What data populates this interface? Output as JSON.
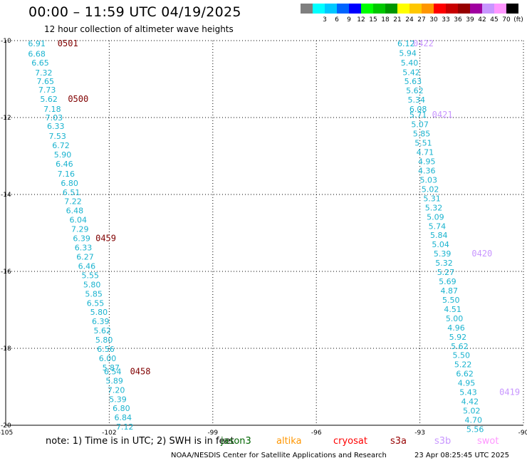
{
  "title": "00:00 – 11:59 UTC 04/19/2025",
  "subtitle": "12 hour collection of altimeter wave heights",
  "scale": {
    "unit": "(ft)",
    "items": [
      {
        "label": "",
        "color": "#7f7f7f"
      },
      {
        "label": "3",
        "color": "#00ffff"
      },
      {
        "label": "6",
        "color": "#00c8ff"
      },
      {
        "label": "9",
        "color": "#0064ff"
      },
      {
        "label": "12",
        "color": "#0000ff"
      },
      {
        "label": "15",
        "color": "#00ff00"
      },
      {
        "label": "18",
        "color": "#00c800"
      },
      {
        "label": "21",
        "color": "#009600"
      },
      {
        "label": "24",
        "color": "#ffff00"
      },
      {
        "label": "27",
        "color": "#ffc800"
      },
      {
        "label": "30",
        "color": "#ff9600"
      },
      {
        "label": "33",
        "color": "#ff0000"
      },
      {
        "label": "36",
        "color": "#c80000"
      },
      {
        "label": "39",
        "color": "#960000"
      },
      {
        "label": "42",
        "color": "#a000a0"
      },
      {
        "label": "45",
        "color": "#c896ff"
      },
      {
        "label": "70",
        "color": "#ff96ff"
      },
      {
        "label": "",
        "color": "#000000"
      }
    ]
  },
  "map": {
    "lon_range": [
      -105,
      -90
    ],
    "lat_range": [
      -20,
      -10
    ],
    "lon_ticks": [
      {
        "v": -105,
        "label": "-105"
      },
      {
        "v": -102,
        "label": "-102"
      },
      {
        "v": -99,
        "label": "-99"
      },
      {
        "v": -96,
        "label": "-96"
      },
      {
        "v": -93,
        "label": "-93"
      },
      {
        "v": -90,
        "label": "-90"
      }
    ],
    "lat_ticks": [
      {
        "v": -10,
        "label": "-10"
      },
      {
        "v": -12,
        "label": "-12"
      },
      {
        "v": -14,
        "label": "-14"
      },
      {
        "v": -16,
        "label": "-16"
      },
      {
        "v": -18,
        "label": "-18"
      },
      {
        "v": -20,
        "label": "-20"
      }
    ],
    "grid": true
  },
  "tracks": [
    {
      "color": "#1ab3cf",
      "label_color": "#800000",
      "points": [
        {
          "lon": -104.1,
          "lat": -10.07,
          "v": "6.91"
        },
        {
          "lon": -104.1,
          "lat": -10.34,
          "v": "6.68"
        },
        {
          "lon": -104.0,
          "lat": -10.57,
          "v": "6.65"
        },
        {
          "lon": -103.9,
          "lat": -10.83,
          "v": "7.32"
        },
        {
          "lon": -103.85,
          "lat": -11.06,
          "v": "7.65"
        },
        {
          "lon": -103.8,
          "lat": -11.28,
          "v": "7.73"
        },
        {
          "lon": -103.75,
          "lat": -11.52,
          "v": "5.62"
        },
        {
          "lon": -103.65,
          "lat": -11.78,
          "v": "7.18"
        },
        {
          "lon": -103.6,
          "lat": -12.0,
          "v": "7.03"
        },
        {
          "lon": -103.55,
          "lat": -12.22,
          "v": "6.33"
        },
        {
          "lon": -103.5,
          "lat": -12.48,
          "v": "7.53"
        },
        {
          "lon": -103.4,
          "lat": -12.72,
          "v": "6.72"
        },
        {
          "lon": -103.35,
          "lat": -12.96,
          "v": "5.90"
        },
        {
          "lon": -103.3,
          "lat": -13.2,
          "v": "6.46"
        },
        {
          "lon": -103.25,
          "lat": -13.46,
          "v": "7.16"
        },
        {
          "lon": -103.15,
          "lat": -13.7,
          "v": "6.80"
        },
        {
          "lon": -103.1,
          "lat": -13.94,
          "v": "6.51"
        },
        {
          "lon": -103.05,
          "lat": -14.18,
          "v": "7.22"
        },
        {
          "lon": -103.0,
          "lat": -14.42,
          "v": "6.48"
        },
        {
          "lon": -102.9,
          "lat": -14.66,
          "v": "6.04"
        },
        {
          "lon": -102.85,
          "lat": -14.9,
          "v": "7.29"
        },
        {
          "lon": -102.8,
          "lat": -15.14,
          "v": "6.39"
        },
        {
          "lon": -102.75,
          "lat": -15.38,
          "v": "6.33"
        },
        {
          "lon": -102.7,
          "lat": -15.62,
          "v": "6.27"
        },
        {
          "lon": -102.65,
          "lat": -15.86,
          "v": "6.46"
        },
        {
          "lon": -102.55,
          "lat": -16.1,
          "v": "5.55"
        },
        {
          "lon": -102.5,
          "lat": -16.34,
          "v": "5.80"
        },
        {
          "lon": -102.45,
          "lat": -16.58,
          "v": "5.85"
        },
        {
          "lon": -102.4,
          "lat": -16.82,
          "v": "6.55"
        },
        {
          "lon": -102.3,
          "lat": -17.06,
          "v": "5.80"
        },
        {
          "lon": -102.25,
          "lat": -17.3,
          "v": "6.39"
        },
        {
          "lon": -102.2,
          "lat": -17.54,
          "v": "5.62"
        },
        {
          "lon": -102.15,
          "lat": -17.78,
          "v": "5.80"
        },
        {
          "lon": -102.1,
          "lat": -18.02,
          "v": "6.56"
        },
        {
          "lon": -102.05,
          "lat": -18.26,
          "v": "6.00"
        },
        {
          "lon": -101.95,
          "lat": -18.5,
          "v": "5.87"
        },
        {
          "lon": -101.9,
          "lat": -18.6,
          "v": "6.54"
        },
        {
          "lon": -101.85,
          "lat": -18.84,
          "v": "5.89"
        },
        {
          "lon": -101.8,
          "lat": -19.08,
          "v": "7.20"
        },
        {
          "lon": -101.75,
          "lat": -19.32,
          "v": "5.39"
        },
        {
          "lon": -101.65,
          "lat": -19.56,
          "v": "6.80"
        },
        {
          "lon": -101.6,
          "lat": -19.8,
          "v": "6.84"
        },
        {
          "lon": -101.55,
          "lat": -20.04,
          "v": "7.12"
        }
      ],
      "time_labels": [
        {
          "lon": -103.2,
          "lat": -10.07,
          "text": "0501"
        },
        {
          "lon": -102.9,
          "lat": -11.52,
          "text": "0500"
        },
        {
          "lon": -102.1,
          "lat": -15.14,
          "text": "0459"
        },
        {
          "lon": -101.1,
          "lat": -18.6,
          "text": "0458"
        }
      ]
    },
    {
      "color": "#1ab3cf",
      "label_color": "#c896ff",
      "points": [
        {
          "lon": -93.4,
          "lat": -10.07,
          "v": "6.12"
        },
        {
          "lon": -93.35,
          "lat": -10.32,
          "v": "5.94"
        },
        {
          "lon": -93.3,
          "lat": -10.57,
          "v": "5.40"
        },
        {
          "lon": -93.25,
          "lat": -10.82,
          "v": "5.42"
        },
        {
          "lon": -93.2,
          "lat": -11.06,
          "v": "5.63"
        },
        {
          "lon": -93.15,
          "lat": -11.3,
          "v": "5.62"
        },
        {
          "lon": -93.1,
          "lat": -11.54,
          "v": "5.34"
        },
        {
          "lon": -93.05,
          "lat": -11.78,
          "v": "6.08"
        },
        {
          "lon": -93.05,
          "lat": -11.93,
          "v": "5.71"
        },
        {
          "lon": -93.0,
          "lat": -12.18,
          "v": "5.07"
        },
        {
          "lon": -92.95,
          "lat": -12.42,
          "v": "5.85"
        },
        {
          "lon": -92.9,
          "lat": -12.66,
          "v": "5.51"
        },
        {
          "lon": -92.85,
          "lat": -12.9,
          "v": "4.71"
        },
        {
          "lon": -92.8,
          "lat": -13.14,
          "v": "4.95"
        },
        {
          "lon": -92.8,
          "lat": -13.38,
          "v": "4.36"
        },
        {
          "lon": -92.75,
          "lat": -13.62,
          "v": "5.03"
        },
        {
          "lon": -92.7,
          "lat": -13.86,
          "v": "5.02"
        },
        {
          "lon": -92.65,
          "lat": -14.1,
          "v": "5.31"
        },
        {
          "lon": -92.6,
          "lat": -14.34,
          "v": "5.32"
        },
        {
          "lon": -92.55,
          "lat": -14.58,
          "v": "5.09"
        },
        {
          "lon": -92.5,
          "lat": -14.82,
          "v": "5.74"
        },
        {
          "lon": -92.45,
          "lat": -15.06,
          "v": "5.84"
        },
        {
          "lon": -92.4,
          "lat": -15.3,
          "v": "5.04"
        },
        {
          "lon": -92.35,
          "lat": -15.54,
          "v": "5.39"
        },
        {
          "lon": -92.3,
          "lat": -15.78,
          "v": "5.32"
        },
        {
          "lon": -92.25,
          "lat": -16.02,
          "v": "5.27"
        },
        {
          "lon": -92.2,
          "lat": -16.26,
          "v": "5.69"
        },
        {
          "lon": -92.15,
          "lat": -16.5,
          "v": "4.87"
        },
        {
          "lon": -92.1,
          "lat": -16.74,
          "v": "5.50"
        },
        {
          "lon": -92.05,
          "lat": -16.98,
          "v": "4.51"
        },
        {
          "lon": -92.0,
          "lat": -17.22,
          "v": "5.00"
        },
        {
          "lon": -91.95,
          "lat": -17.46,
          "v": "4.96"
        },
        {
          "lon": -91.9,
          "lat": -17.7,
          "v": "5.92"
        },
        {
          "lon": -91.85,
          "lat": -17.94,
          "v": "5.62"
        },
        {
          "lon": -91.8,
          "lat": -18.18,
          "v": "5.50"
        },
        {
          "lon": -91.75,
          "lat": -18.42,
          "v": "5.22"
        },
        {
          "lon": -91.7,
          "lat": -18.66,
          "v": "6.62"
        },
        {
          "lon": -91.65,
          "lat": -18.9,
          "v": "4.95"
        },
        {
          "lon": -91.6,
          "lat": -19.14,
          "v": "5.43"
        },
        {
          "lon": -91.55,
          "lat": -19.38,
          "v": "4.42"
        },
        {
          "lon": -91.5,
          "lat": -19.62,
          "v": "5.02"
        },
        {
          "lon": -91.45,
          "lat": -19.86,
          "v": "4.70"
        },
        {
          "lon": -91.4,
          "lat": -20.1,
          "v": "5.56"
        }
      ],
      "time_labels": [
        {
          "lon": -92.9,
          "lat": -10.07,
          "text": "0422"
        },
        {
          "lon": -92.35,
          "lat": -11.93,
          "text": "0421"
        },
        {
          "lon": -91.2,
          "lat": -15.54,
          "text": "0420"
        },
        {
          "lon": -90.4,
          "lat": -19.14,
          "text": "0419"
        }
      ]
    }
  ],
  "note": "note: 1) Time is in UTC; 2) SWH is in feet",
  "satellites": [
    {
      "name": "jason3",
      "color": "#006400"
    },
    {
      "name": "altika",
      "color": "#ff9600"
    },
    {
      "name": "cryosat",
      "color": "#ff0000"
    },
    {
      "name": "s3a",
      "color": "#960000"
    },
    {
      "name": "s3b",
      "color": "#c896ff"
    },
    {
      "name": "swot",
      "color": "#ff96ff"
    }
  ],
  "footer": {
    "org": "NOAA/NESDIS Center for Satellite Applications and Research",
    "timestamp": "23 Apr 08:25:45 UTC 2025"
  }
}
